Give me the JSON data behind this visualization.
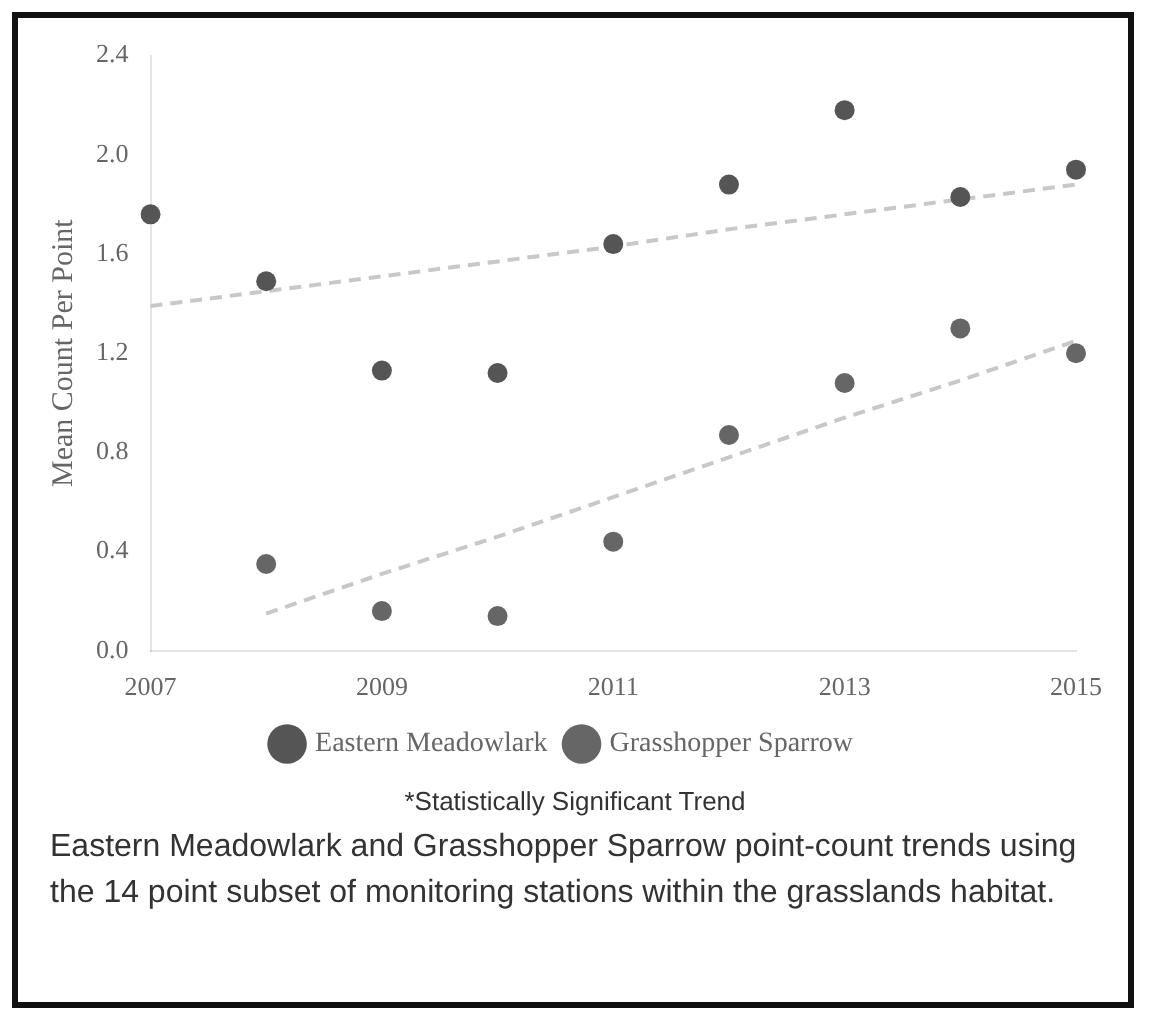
{
  "chart_data": {
    "type": "scatter",
    "ylabel": "Mean Count Per Point",
    "categories": [
      "2007",
      null,
      "2009",
      null,
      "2011",
      null,
      "2013",
      null,
      "2015"
    ],
    "series": [
      {
        "name": "Eastern Meadowlark",
        "color": "#555555",
        "marker": "circle",
        "values": [
          1.76,
          1.49,
          1.13,
          1.12,
          1.64,
          1.88,
          2.18,
          1.83,
          1.94
        ]
      },
      {
        "name": "Grasshopper Sparrow",
        "color": "#666666",
        "marker": "circle",
        "values": [
          null,
          0.35,
          0.16,
          0.14,
          0.44,
          0.87,
          1.08,
          1.3,
          1.2
        ]
      },
      {
        "type": "line",
        "color": "#c8c8c8",
        "line_style": "dashed",
        "marker": "none",
        "values": [
          1.39,
          1.45,
          1.51,
          1.57,
          1.63,
          1.7,
          1.76,
          1.82,
          1.88
        ]
      },
      {
        "type": "line",
        "color": "#c8c8c8",
        "line_style": "dashed",
        "marker": "none",
        "values": [
          null,
          0.15,
          0.31,
          0.46,
          0.62,
          0.78,
          0.94,
          1.09,
          1.25
        ]
      }
    ],
    "ylim": [
      0,
      2.4
    ],
    "yticks": [
      {
        "value": 0,
        "label": "0.0"
      },
      0.4,
      0.8,
      1.2,
      1.6,
      {
        "value": 2,
        "label": "2.0"
      },
      2.4
    ],
    "legend": "bottom",
    "grid": false,
    "annotations": [
      "*Statistically Significant Trend",
      "Eastern Meadowlark and Grasshopper Sparrow point-count trends using the 14 point subset of monitoring stations within the grasslands habitat."
    ]
  }
}
